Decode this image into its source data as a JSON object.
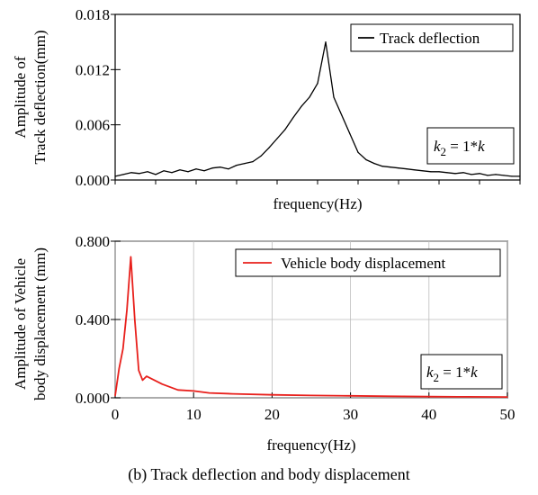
{
  "caption": "(b) Track deflection and body displacement",
  "chart_data": [
    {
      "type": "line",
      "xlabel": "frequency(Hz)",
      "ylabel": "Amplitude of Track deflection(mm)",
      "ylim": [
        0,
        0.018
      ],
      "xlim": [
        0,
        50
      ],
      "yticks": [
        "0.000",
        "0.006",
        "0.012",
        "0.018"
      ],
      "xticks": [],
      "grid": false,
      "legend_position": "top-right",
      "annotation": {
        "base": "k",
        "sub": "2",
        "rest": " = 1*",
        "end": "k"
      },
      "series": [
        {
          "name": "Track deflection",
          "color": "#000000",
          "x": [
            0,
            1,
            2,
            3,
            4,
            5,
            6,
            7,
            8,
            9,
            10,
            11,
            12,
            13,
            14,
            15,
            16,
            17,
            18,
            19,
            20,
            21,
            22,
            23,
            24,
            25,
            26,
            27,
            28,
            29,
            30,
            31,
            32,
            33,
            34,
            35,
            36,
            37,
            38,
            39,
            40,
            41,
            42,
            43,
            44,
            45,
            46,
            47,
            48,
            49,
            50
          ],
          "y": [
            0.0004,
            0.0006,
            0.0008,
            0.0007,
            0.0009,
            0.0006,
            0.001,
            0.0008,
            0.0011,
            0.0009,
            0.0012,
            0.001,
            0.0013,
            0.0014,
            0.0012,
            0.0016,
            0.0018,
            0.002,
            0.0026,
            0.0035,
            0.0045,
            0.0055,
            0.0068,
            0.008,
            0.009,
            0.0105,
            0.015,
            0.009,
            0.007,
            0.005,
            0.003,
            0.0022,
            0.0018,
            0.0015,
            0.0014,
            0.0013,
            0.0012,
            0.0011,
            0.001,
            0.0009,
            0.0009,
            0.0008,
            0.0007,
            0.0008,
            0.0006,
            0.0007,
            0.0005,
            0.0006,
            0.0005,
            0.0004,
            0.0004
          ]
        }
      ]
    },
    {
      "type": "line",
      "xlabel": "frequency(Hz)",
      "ylabel": "Amplitude of Vehicle body displacement (mm)",
      "ylim": [
        0,
        0.8
      ],
      "xlim": [
        0,
        50
      ],
      "yticks": [
        "0.000",
        "0.400",
        "0.800"
      ],
      "xticks": [
        "0",
        "10",
        "20",
        "30",
        "40",
        "50"
      ],
      "grid": true,
      "legend_position": "top-right",
      "annotation": {
        "base": "k",
        "sub": "2",
        "rest": " = 1*",
        "end": "k"
      },
      "series": [
        {
          "name": "Vehicle body displacement",
          "color": "#e8201c",
          "x": [
            0,
            0.5,
            1,
            1.5,
            2,
            2.5,
            3,
            3.5,
            4,
            5,
            6,
            8,
            10,
            12,
            15,
            20,
            25,
            30,
            35,
            40,
            45,
            50
          ],
          "y": [
            0.01,
            0.15,
            0.25,
            0.45,
            0.72,
            0.4,
            0.14,
            0.09,
            0.11,
            0.09,
            0.07,
            0.04,
            0.035,
            0.025,
            0.02,
            0.015,
            0.012,
            0.01,
            0.008,
            0.006,
            0.005,
            0.004
          ]
        }
      ]
    }
  ]
}
